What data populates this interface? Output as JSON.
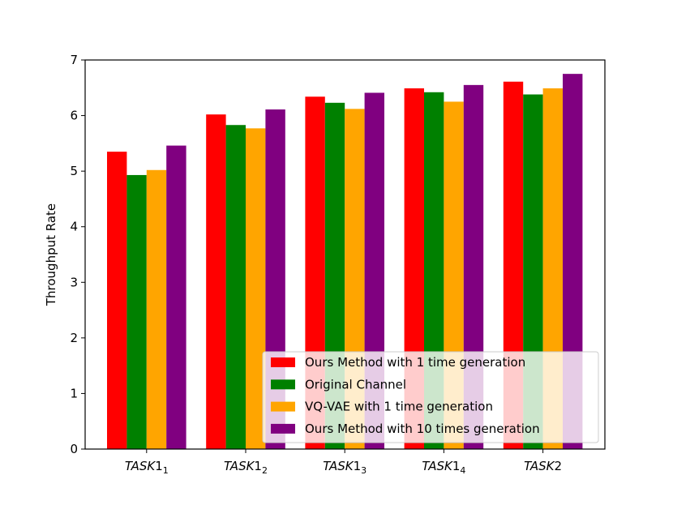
{
  "chart_data": {
    "type": "bar",
    "title": "",
    "xlabel": "",
    "ylabel": "Throughput Rate",
    "ylim": [
      0,
      7
    ],
    "yticks": [
      "0",
      "1",
      "2",
      "3",
      "4",
      "5",
      "6",
      "7"
    ],
    "categories": [
      {
        "base": "TASK1",
        "sub": "1"
      },
      {
        "base": "TASK1",
        "sub": "2"
      },
      {
        "base": "TASK1",
        "sub": "3"
      },
      {
        "base": "TASK1",
        "sub": "4"
      },
      {
        "base": "TASK2",
        "sub": ""
      }
    ],
    "series": [
      {
        "name": "Ours Method with 1 time generation",
        "color": "#ff0000",
        "values": [
          5.35,
          6.02,
          6.34,
          6.49,
          6.61
        ]
      },
      {
        "name": "Original Channel",
        "color": "#008000",
        "values": [
          4.93,
          5.83,
          6.23,
          6.42,
          6.38
        ]
      },
      {
        "name": "VQ-VAE with 1 time generation",
        "color": "#ffa500",
        "values": [
          5.02,
          5.77,
          6.12,
          6.25,
          6.49
        ]
      },
      {
        "name": "Ours Method with 10 times generation",
        "color": "#800080",
        "values": [
          5.46,
          6.11,
          6.41,
          6.55,
          6.75
        ]
      }
    ],
    "grid": false,
    "legend": "lower-right"
  }
}
